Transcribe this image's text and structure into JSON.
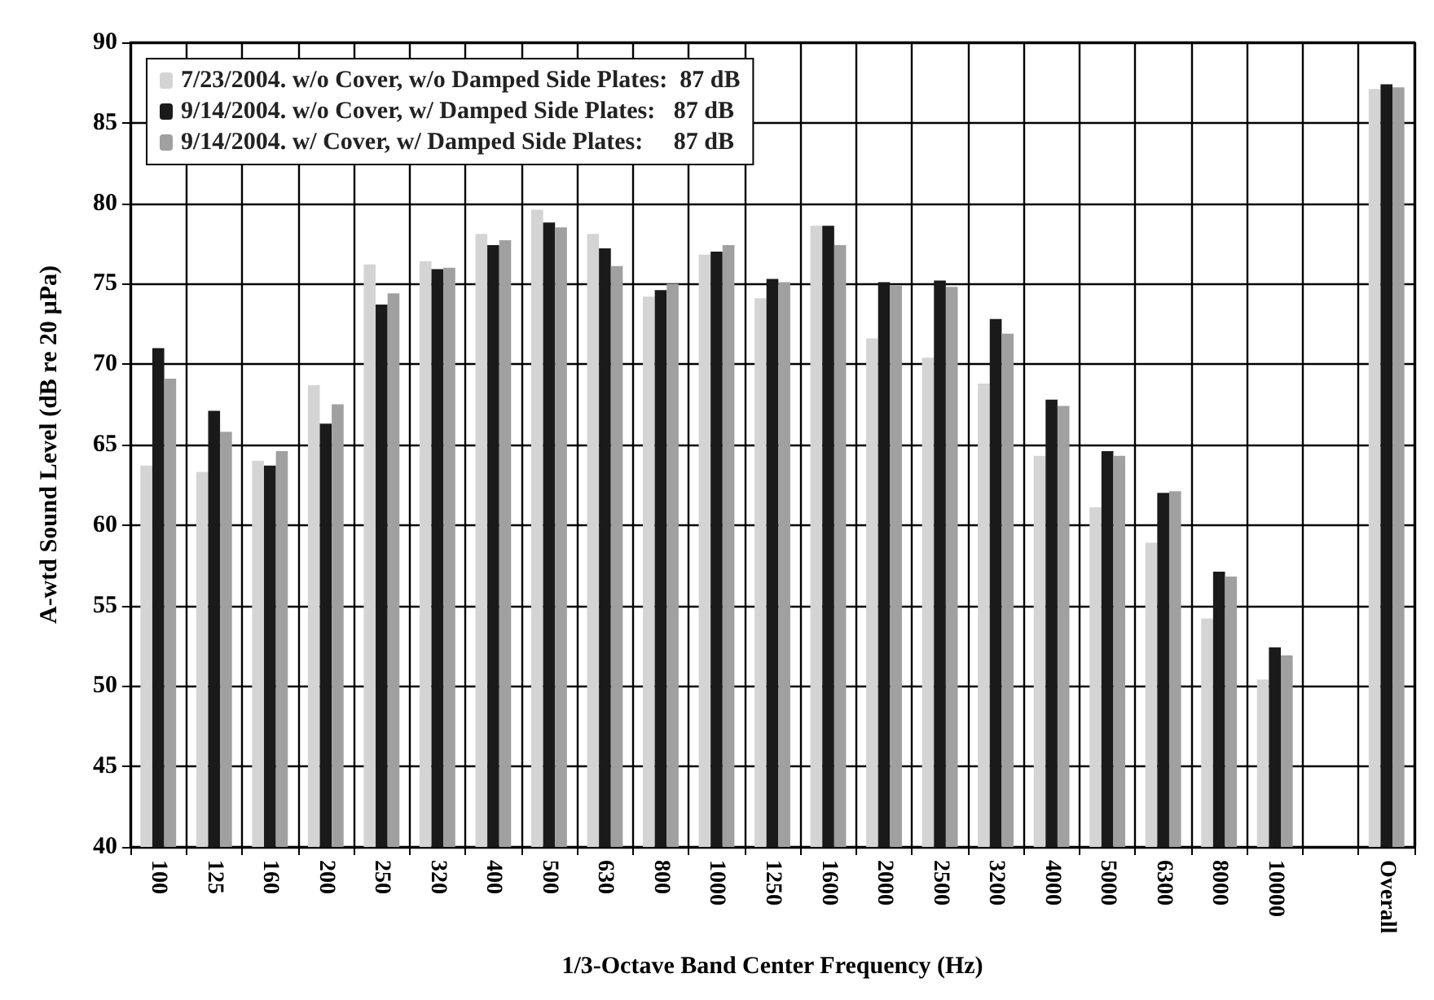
{
  "chart_data": {
    "type": "bar",
    "xlabel": "1/3-Octave Band Center Frequency (Hz)",
    "ylabel": "A-wtd Sound Level (dB re 20 µPa)",
    "categories": [
      "100",
      "125",
      "160",
      "200",
      "250",
      "320",
      "400",
      "500",
      "630",
      "800",
      "1000",
      "1250",
      "1600",
      "2000",
      "2500",
      "3200",
      "4000",
      "5000",
      "6300",
      "8000",
      "10000",
      null,
      "Overall"
    ],
    "series": [
      {
        "name": "7/23/2004. w/o Cover, w/o Damped Side Plates:  87 dB",
        "color": "#d4d4d4",
        "values": [
          63.7,
          63.3,
          64.0,
          68.7,
          76.2,
          76.4,
          78.1,
          79.6,
          78.1,
          74.2,
          76.8,
          74.1,
          78.6,
          71.6,
          70.4,
          68.8,
          64.3,
          61.1,
          58.9,
          54.2,
          50.4,
          null,
          87.1
        ]
      },
      {
        "name": "9/14/2004. w/o Cover, w/ Damped Side Plates:   87 dB",
        "color": "#1a1a1a",
        "values": [
          71.0,
          67.1,
          63.7,
          66.3,
          73.7,
          75.9,
          77.4,
          78.8,
          77.2,
          74.6,
          77.0,
          75.3,
          78.6,
          75.1,
          75.2,
          72.8,
          67.8,
          64.6,
          62.0,
          57.1,
          52.4,
          null,
          87.4
        ]
      },
      {
        "name": "9/14/2004. w/ Cover, w/ Damped Side Plates:     87 dB",
        "color": "#a0a0a0",
        "values": [
          69.1,
          65.8,
          64.6,
          67.5,
          74.4,
          76.0,
          77.7,
          78.5,
          76.1,
          75.0,
          77.4,
          75.1,
          77.4,
          74.9,
          74.8,
          71.9,
          67.4,
          64.3,
          62.1,
          56.8,
          51.9,
          null,
          87.2
        ]
      }
    ],
    "ylim": [
      40,
      90
    ],
    "yticks": [
      40,
      45,
      50,
      55,
      60,
      65,
      70,
      75,
      80,
      85,
      90
    ],
    "grid": true,
    "legend": "top left"
  }
}
